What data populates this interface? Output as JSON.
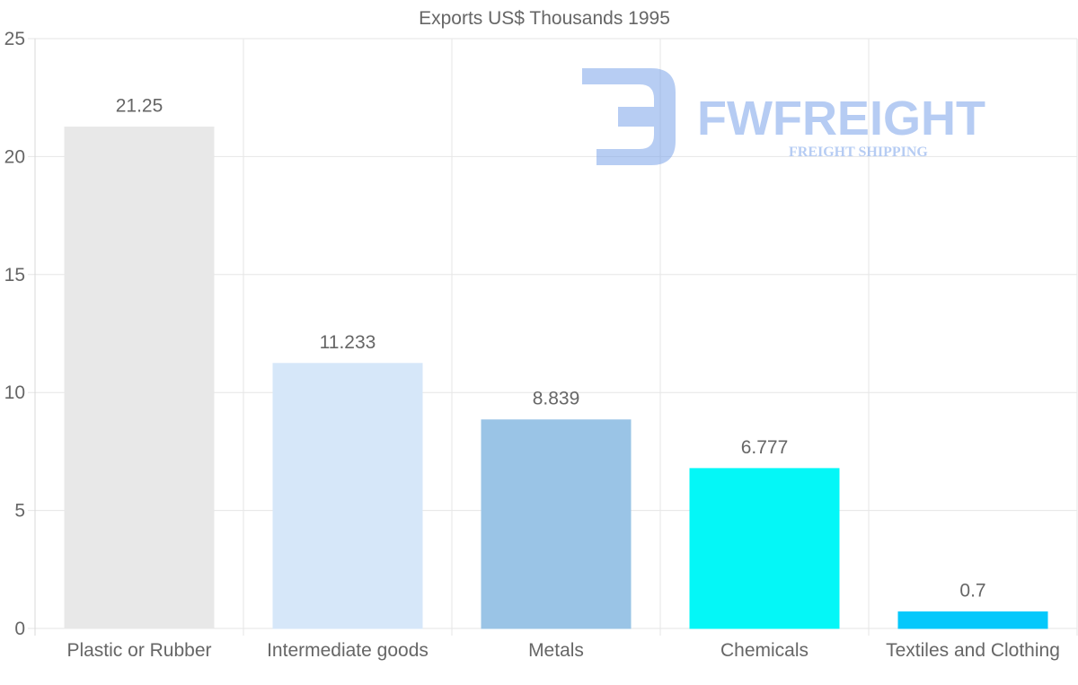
{
  "chart_data": {
    "type": "bar",
    "title": "Exports US$ Thousands 1995",
    "categories": [
      "Plastic or Rubber",
      "Intermediate goods",
      "Metals",
      "Chemicals",
      "Textiles and Clothing"
    ],
    "values": [
      21.25,
      11.233,
      8.839,
      6.777,
      0.7
    ],
    "value_labels": [
      "21.25",
      "11.233",
      "8.839",
      "6.777",
      "0.7"
    ],
    "colors": [
      "#e8e8e8",
      "#d6e7f9",
      "#9ac4e6",
      "#04f7f7",
      "#05c8fb"
    ],
    "ylim": [
      0,
      25
    ],
    "yticks": [
      0,
      5,
      10,
      15,
      20,
      25
    ],
    "xlabel": "",
    "ylabel": "",
    "grid": true,
    "legend": "none"
  },
  "watermark": {
    "brand": "FWFREIGHT",
    "tagline": "FREIGHT SHIPPING",
    "color": "#6f9be8"
  }
}
